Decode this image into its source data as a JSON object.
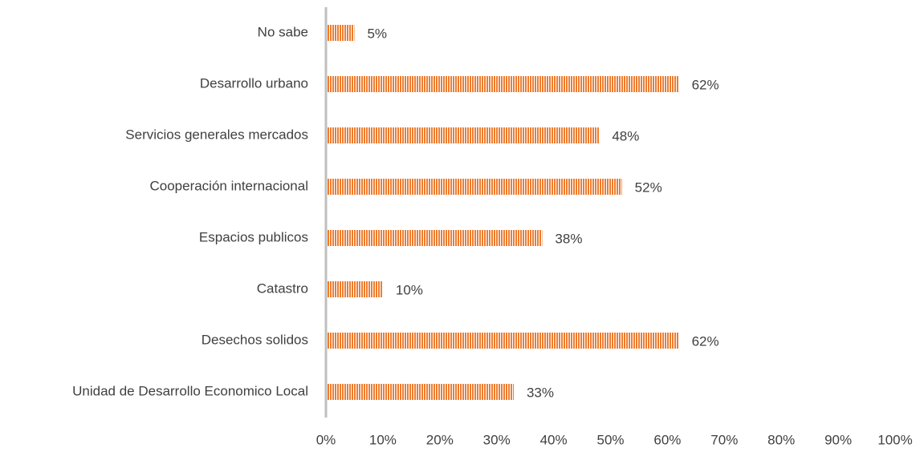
{
  "chart_data": {
    "type": "barh",
    "categories": [
      "No sabe",
      "Desarrollo urbano",
      "Servicios generales mercados",
      "Cooperación internacional",
      "Espacios publicos",
      "Catastro",
      "Desechos solidos",
      "Unidad de Desarrollo Economico Local"
    ],
    "values": [
      5,
      62,
      48,
      52,
      38,
      10,
      62,
      33
    ],
    "value_labels": [
      "5%",
      "62%",
      "48%",
      "52%",
      "38%",
      "10%",
      "62%",
      "33%"
    ],
    "color": "#ed7d31",
    "xlim": [
      0,
      100
    ],
    "xticks": [
      {
        "value": 0,
        "label": "0%"
      },
      {
        "value": 10,
        "label": "10%"
      },
      {
        "value": 20,
        "label": "20%"
      },
      {
        "value": 30,
        "label": "30%"
      },
      {
        "value": 40,
        "label": "40%"
      },
      {
        "value": 50,
        "label": "50%"
      },
      {
        "value": 60,
        "label": "60%"
      },
      {
        "value": 70,
        "label": "70%"
      },
      {
        "value": 80,
        "label": "80%"
      },
      {
        "value": 90,
        "label": "90%"
      },
      {
        "value": 100,
        "label": "100%"
      }
    ]
  }
}
